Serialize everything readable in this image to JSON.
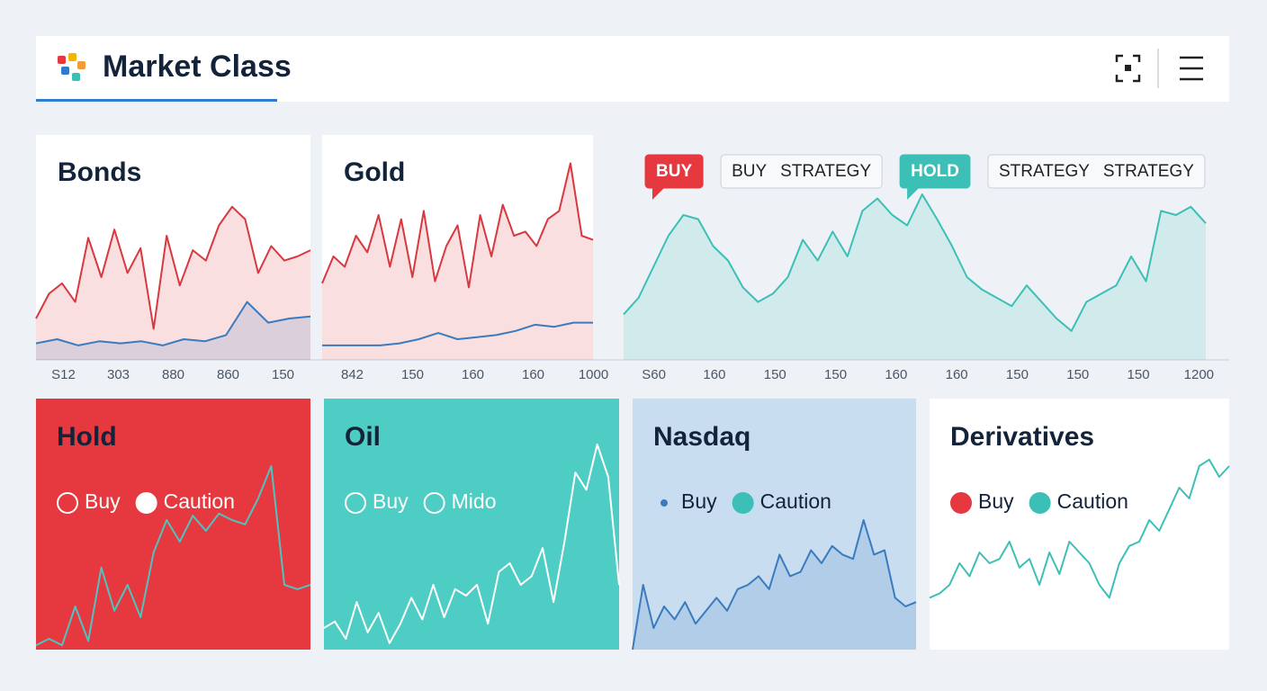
{
  "header": {
    "title": "Market Class"
  },
  "top_panels": [
    {
      "title": "Bonds",
      "axis_labels": [
        "S12",
        "303",
        "880",
        "860",
        "150"
      ],
      "series": [
        {
          "color": "#d8383f",
          "area": true,
          "values": [
            20,
            32,
            37,
            28,
            59,
            40,
            63,
            42,
            54,
            15,
            60,
            36,
            53,
            48,
            65,
            74,
            68,
            42,
            55,
            48,
            50,
            53
          ]
        },
        {
          "color": "#3a7bbf",
          "area": true,
          "values": [
            8,
            10,
            7,
            9,
            8,
            9,
            7,
            10,
            9,
            12,
            28,
            18,
            20,
            21
          ]
        }
      ]
    },
    {
      "title": "Gold",
      "axis_labels": [
        "842",
        "150",
        "160",
        "160",
        "1000"
      ],
      "series": [
        {
          "color": "#d8383f",
          "area": true,
          "values": [
            37,
            50,
            45,
            60,
            52,
            70,
            45,
            68,
            40,
            72,
            38,
            55,
            65,
            35,
            70,
            50,
            75,
            60,
            62,
            55,
            68,
            72,
            95,
            60,
            58
          ]
        },
        {
          "color": "#3a7bbf",
          "area": false,
          "values": [
            7,
            7,
            7,
            7,
            8,
            10,
            13,
            10,
            11,
            12,
            14,
            17,
            16,
            18,
            18
          ]
        }
      ]
    },
    {
      "tags": [
        {
          "text": "BUY",
          "style": "red"
        },
        {
          "text": "BUY STRATEGY",
          "style": "outline"
        },
        {
          "text": "HOLD",
          "style": "teal"
        },
        {
          "text": "STRATEGY STRATEGY",
          "style": "outline"
        }
      ],
      "axis_labels": [
        "S60",
        "160",
        "150",
        "150",
        "160",
        "160",
        "150",
        "150",
        "150",
        "1200"
      ],
      "series": [
        {
          "color": "#3cbfb6",
          "area": true,
          "values": [
            22,
            30,
            45,
            60,
            70,
            68,
            55,
            48,
            35,
            28,
            32,
            40,
            58,
            48,
            62,
            50,
            72,
            78,
            70,
            65,
            80,
            68,
            55,
            40,
            34,
            30,
            26,
            36,
            28,
            20,
            14,
            28,
            32,
            36,
            50,
            38,
            72,
            70,
            74,
            66
          ]
        }
      ]
    }
  ],
  "bottom_panels": [
    {
      "title": "Hold",
      "background": "#e5393f",
      "text_color": "#ffffff",
      "legend": [
        {
          "name": "Buy",
          "color": "#ffffff",
          "hollow": true
        },
        {
          "name": "Caution",
          "color": "#ffffff",
          "hollow": false
        }
      ],
      "series": [
        {
          "color": "#4ec3bf",
          "values": [
            2,
            5,
            2,
            20,
            4,
            38,
            18,
            30,
            15,
            45,
            60,
            50,
            62,
            55,
            63,
            60,
            58,
            70,
            85,
            30,
            28,
            30
          ]
        }
      ]
    },
    {
      "title": "Oil",
      "background": "#4ecdc4",
      "text_color": "#ffffff",
      "title_color": "#13243a",
      "legend": [
        {
          "name": "Buy",
          "color": "#ffffff",
          "hollow": true
        },
        {
          "name": "Mido",
          "color": "#ffffff",
          "hollow": true
        }
      ],
      "series": [
        {
          "color": "#ffffff",
          "values": [
            10,
            13,
            5,
            22,
            8,
            17,
            3,
            12,
            24,
            14,
            30,
            15,
            28,
            25,
            30,
            12,
            36,
            40,
            30,
            34,
            47,
            22,
            50,
            82,
            74,
            95,
            80,
            30
          ]
        }
      ]
    },
    {
      "title": "Nasdaq",
      "background": "#c9ddf0",
      "text_color": "#13243a",
      "legend": [
        {
          "name": "Buy",
          "color": "#3a7bbf",
          "hollow": false,
          "small": true
        },
        {
          "name": "Caution",
          "color": "#3cbfb6",
          "hollow": false
        }
      ],
      "series": [
        {
          "color": "#3a7bbf",
          "area": true,
          "values": [
            0,
            30,
            10,
            20,
            14,
            22,
            12,
            18,
            24,
            18,
            28,
            30,
            34,
            28,
            44,
            34,
            36,
            46,
            40,
            48,
            44,
            42,
            60,
            44,
            46,
            24,
            20,
            22
          ]
        }
      ]
    },
    {
      "title": "Derivatives",
      "background": "#ffffff",
      "text_color": "#13243a",
      "legend": [
        {
          "name": "Buy",
          "color": "#e5393f",
          "hollow": false
        },
        {
          "name": "Caution",
          "color": "#3cbfb6",
          "hollow": false
        }
      ],
      "series": [
        {
          "color": "#3cbfb6",
          "values": [
            24,
            26,
            30,
            40,
            34,
            45,
            40,
            42,
            50,
            38,
            42,
            30,
            45,
            35,
            50,
            45,
            40,
            30,
            24,
            40,
            48,
            50,
            60,
            55,
            65,
            75,
            70,
            85,
            88,
            80,
            85
          ]
        }
      ]
    }
  ]
}
